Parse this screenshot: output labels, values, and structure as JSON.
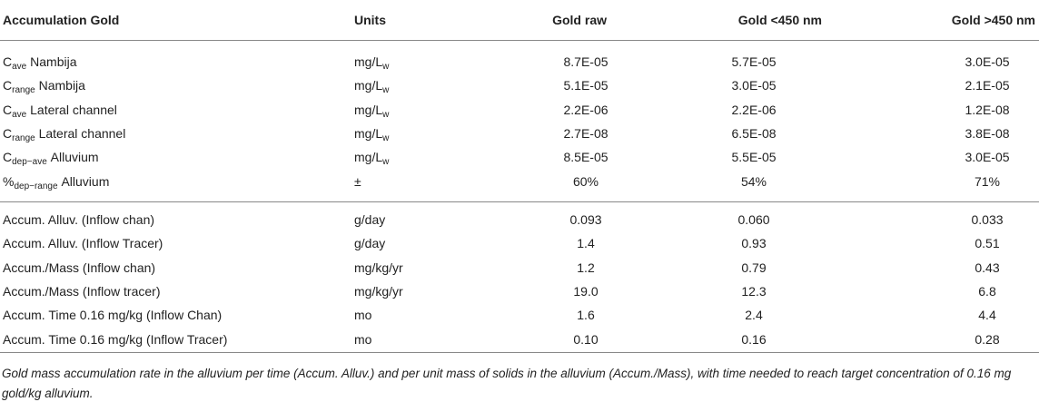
{
  "table": {
    "header": [
      "Accumulation Gold",
      "Units",
      "Gold raw",
      "Gold <450 nm",
      "Gold >450 nm"
    ],
    "groups": [
      [
        [
          {
            "symbol": "C",
            "subscript": "ave",
            "name": "Nambija"
          },
          {
            "unit": "mg/L",
            "subscript": "w"
          },
          "8.7E-05",
          "5.7E-05",
          "3.0E-05"
        ],
        [
          {
            "symbol": "C",
            "subscript": "range",
            "name": "Nambija"
          },
          {
            "unit": "mg/L",
            "subscript": "w"
          },
          "5.1E-05",
          "3.0E-05",
          "2.1E-05"
        ],
        [
          {
            "symbol": "C",
            "subscript": "ave",
            "name": "Lateral channel"
          },
          {
            "unit": "mg/L",
            "subscript": "w"
          },
          "2.2E-06",
          "2.2E-06",
          "1.2E-08"
        ],
        [
          {
            "symbol": "C",
            "subscript": "range",
            "name": "Lateral channel"
          },
          {
            "unit": "mg/L",
            "subscript": "w"
          },
          "2.7E-08",
          "6.5E-08",
          "3.8E-08"
        ],
        [
          {
            "symbol": "C",
            "subscript": "dep−ave",
            "name": "Alluvium"
          },
          {
            "unit": "mg/L",
            "subscript": "w"
          },
          "8.5E-05",
          "5.5E-05",
          "3.0E-05"
        ],
        [
          {
            "symbol": "%",
            "subscript": "dep−range",
            "name": "Alluvium"
          },
          "±",
          "60%",
          "54%",
          "71%"
        ]
      ],
      [
        [
          "Accum. Alluv. (Inflow chan)",
          "g/day",
          "0.093",
          "0.060",
          "0.033"
        ],
        [
          "Accum. Alluv. (Inflow Tracer)",
          "g/day",
          "1.4",
          "0.93",
          "0.51"
        ],
        [
          "Accum./Mass (Inflow chan)",
          "mg/kg/yr",
          "1.2",
          "0.79",
          "0.43"
        ],
        [
          "Accum./Mass (Inflow tracer)",
          "mg/kg/yr",
          "19.0",
          "12.3",
          "6.8"
        ],
        [
          "Accum. Time 0.16 mg/kg (Inflow Chan)",
          "mo",
          "1.6",
          "2.4",
          "4.4"
        ],
        [
          "Accum. Time 0.16 mg/kg (Inflow Tracer)",
          "mo",
          "0.10",
          "0.16",
          "0.28"
        ]
      ]
    ],
    "note": "Gold mass accumulation rate in the alluvium per time (Accum. Alluv.) and per unit mass of solids in the alluvium (Accum./Mass), with time needed to reach target concentration of 0.16 mg gold/kg alluvium."
  }
}
